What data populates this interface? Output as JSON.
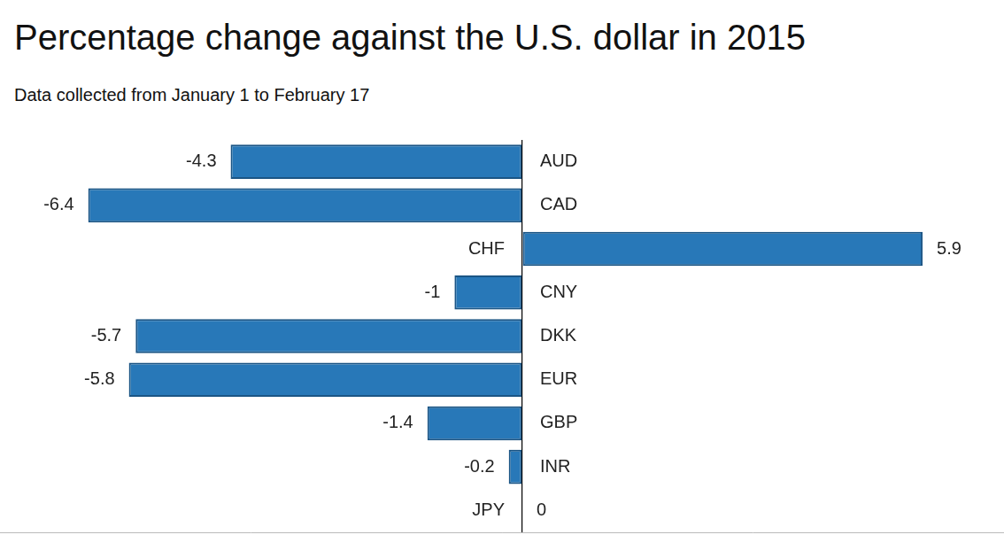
{
  "chart_data": {
    "type": "bar",
    "orientation": "horizontal",
    "title": "Percentage change against the U.S. dollar in 2015",
    "subtitle": "Data collected from January 1 to February 17",
    "categories": [
      "AUD",
      "CAD",
      "CHF",
      "CNY",
      "DKK",
      "EUR",
      "GBP",
      "INR",
      "JPY"
    ],
    "values": [
      -4.3,
      -6.4,
      5.9,
      -1,
      -5.7,
      -5.8,
      -1.4,
      -0.2,
      0
    ],
    "color": "#2878b8",
    "xlim": [
      -7.7,
      7.1
    ],
    "xticks": [
      0
    ],
    "grid": true,
    "data_labels": true,
    "tick_labels": false
  }
}
